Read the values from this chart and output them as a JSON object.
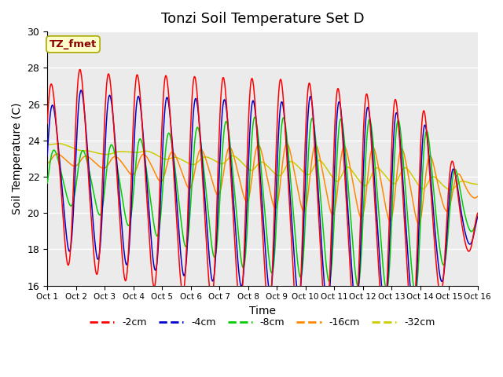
{
  "title": "Tonzi Soil Temperature Set D",
  "xlabel": "Time",
  "ylabel": "Soil Temperature (C)",
  "ylim": [
    16,
    30
  ],
  "xlim": [
    0,
    15
  ],
  "x_tick_labels": [
    "Oct 1",
    "Oct 2",
    "Oct 3",
    "Oct 4",
    "Oct 5",
    "Oct 6",
    "Oct 7",
    "Oct 8",
    "Oct 9",
    "Oct 10",
    "Oct 11",
    "Oct 12",
    "Oct 13",
    "Oct 14",
    "Oct 15",
    "Oct 16"
  ],
  "annotation_text": "TZ_fmet",
  "annotation_color": "#8B0000",
  "annotation_bg": "#FFFFCC",
  "series_colors": {
    "-2cm": "#FF0000",
    "-4cm": "#0000CC",
    "-8cm": "#00CC00",
    "-16cm": "#FF8800",
    "-32cm": "#CCCC00"
  },
  "legend_entries": [
    "-2cm",
    "-4cm",
    "-8cm",
    "-16cm",
    "-32cm"
  ],
  "background_color": "#EBEBEB",
  "title_fontsize": 13,
  "axis_label_fontsize": 10
}
